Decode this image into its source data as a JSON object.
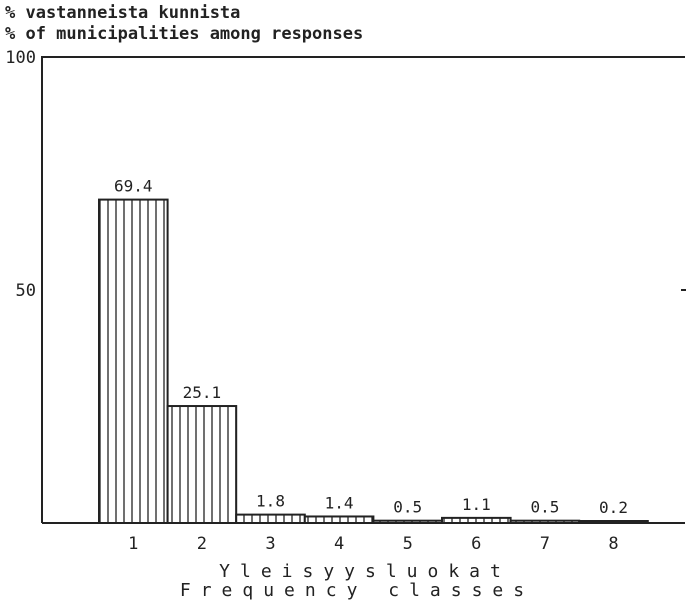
{
  "chart_data": {
    "type": "bar",
    "ylabel": [
      "% vastanneista kunnista",
      "% of municipalities among responses"
    ],
    "xlabel": [
      "Yleisyysluokat",
      "Frequency classes"
    ],
    "categories": [
      "1",
      "2",
      "3",
      "4",
      "5",
      "6",
      "7",
      "8"
    ],
    "values": [
      69.4,
      25.1,
      1.8,
      1.4,
      0.5,
      1.1,
      0.5,
      0.2
    ],
    "value_labels": [
      "69.4",
      "25.1",
      "1.8",
      "1.4",
      "0.5",
      "1.1",
      "0.5",
      "0.2"
    ],
    "ylim": [
      0,
      100
    ],
    "yticks": [
      "100",
      "50"
    ],
    "ytick_values": [
      100,
      50
    ],
    "grid": false,
    "bar_style": "vertical hatching"
  }
}
